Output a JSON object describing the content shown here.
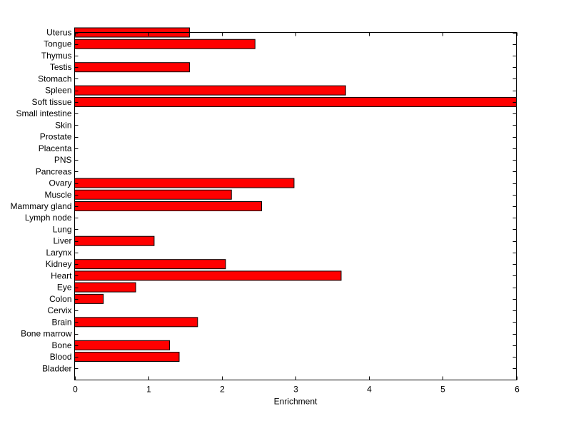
{
  "chart_data": {
    "type": "bar",
    "orientation": "horizontal",
    "title": "",
    "xlabel": "Enrichment",
    "ylabel": "",
    "xlim": [
      0,
      6
    ],
    "ylim": [
      0,
      30
    ],
    "xticks": [
      "0",
      "1",
      "2",
      "3",
      "4",
      "5",
      "6"
    ],
    "grid": false,
    "bar_color": "#ff0000",
    "edge_color": "#000000",
    "categories": [
      "Bladder",
      "Blood",
      "Bone",
      "Bone marrow",
      "Brain",
      "Cervix",
      "Colon",
      "Eye",
      "Heart",
      "Kidney",
      "Larynx",
      "Liver",
      "Lung",
      "Lymph node",
      "Mammary gland",
      "Muscle",
      "Ovary",
      "Pancreas",
      "PNS",
      "Placenta",
      "Prostate",
      "Skin",
      "Small intestine",
      "Soft tissue",
      "Spleen",
      "Stomach",
      "Testis",
      "Thymus",
      "Tongue",
      "Uterus"
    ],
    "values": [
      0,
      1.42,
      1.29,
      0,
      1.67,
      0,
      0.39,
      0.83,
      3.62,
      2.05,
      0,
      1.08,
      0,
      0,
      2.54,
      2.13,
      2.98,
      0,
      0,
      0,
      0,
      0,
      0,
      6.0,
      3.68,
      0,
      1.56,
      0,
      2.45,
      1.56
    ]
  }
}
